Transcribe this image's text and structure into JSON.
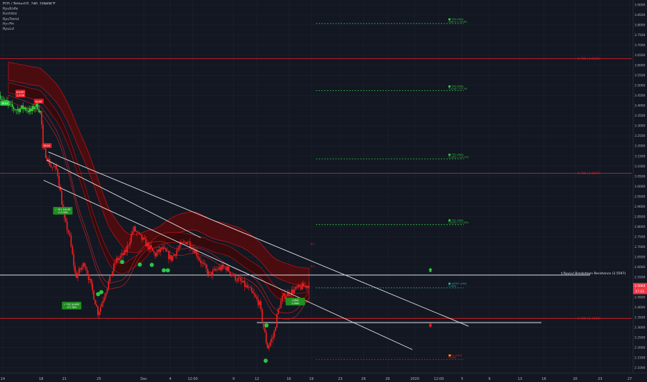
{
  "header": {
    "title": "EOS / TetherUS, 240, BINANCE",
    "indicators": [
      "RyuKnife",
      "Kushikoi",
      "RyuTrend",
      "RyuFib",
      "RyuLvl"
    ]
  },
  "chart_data": {
    "type": "candlestick",
    "x_ticks": [
      "14",
      "18",
      "21",
      "25",
      "Dec",
      "4",
      "12:00",
      "9",
      "12",
      "16",
      "19",
      "23",
      "26",
      "29",
      "2020",
      "12:00",
      "5",
      "9",
      "13",
      "16",
      "20",
      "23",
      "27",
      "12:00"
    ],
    "y_ticks": [
      "3.9000",
      "3.8500",
      "3.8000",
      "3.7500",
      "3.7000",
      "3.6500",
      "3.6000",
      "3.5500",
      "3.5000",
      "3.4500",
      "3.4000",
      "3.3500",
      "3.3000",
      "3.2500",
      "3.2000",
      "3.1500",
      "3.1000",
      "3.0500",
      "3.0000",
      "2.9500",
      "2.9000",
      "2.8500",
      "2.8000",
      "2.7500",
      "2.7000",
      "2.6500",
      "2.6000",
      "2.5500",
      "2.5000",
      "2.4500",
      "2.4000",
      "2.3500",
      "2.3000",
      "2.2500",
      "2.2000",
      "2.1500",
      "2.1000"
    ],
    "ylim": [
      2.09,
      3.91
    ],
    "last_price": "2.5064",
    "countdown": "17:23",
    "close_path": [
      {
        "day": 0,
        "price": 3.45
      },
      {
        "day": 1,
        "price": 3.4
      },
      {
        "day": 2,
        "price": 3.38
      },
      {
        "day": 3,
        "price": 3.39
      },
      {
        "day": 3.8,
        "price": 3.37
      },
      {
        "day": 4.5,
        "price": 3.41
      },
      {
        "day": 5.1,
        "price": 3.36
      },
      {
        "day": 5.3,
        "price": 3.19
      },
      {
        "day": 6.3,
        "price": 3.1
      },
      {
        "day": 7.1,
        "price": 3.08
      },
      {
        "day": 8,
        "price": 2.83
      },
      {
        "day": 8.6,
        "price": 2.76
      },
      {
        "day": 9.4,
        "price": 2.55
      },
      {
        "day": 10.5,
        "price": 2.62
      },
      {
        "day": 11.5,
        "price": 2.48
      },
      {
        "day": 12.2,
        "price": 2.37
      },
      {
        "day": 13.4,
        "price": 2.51
      },
      {
        "day": 14.4,
        "price": 2.63
      },
      {
        "day": 15.6,
        "price": 2.67
      },
      {
        "day": 16.6,
        "price": 2.79
      },
      {
        "day": 17.4,
        "price": 2.75
      },
      {
        "day": 18.3,
        "price": 2.71
      },
      {
        "day": 19.3,
        "price": 2.66
      },
      {
        "day": 20.2,
        "price": 2.69
      },
      {
        "day": 21.3,
        "price": 2.64
      },
      {
        "day": 22.3,
        "price": 2.7
      },
      {
        "day": 23.3,
        "price": 2.73
      },
      {
        "day": 24.3,
        "price": 2.68
      },
      {
        "day": 25.1,
        "price": 2.62
      },
      {
        "day": 26.1,
        "price": 2.56
      },
      {
        "day": 27.1,
        "price": 2.59
      },
      {
        "day": 28.1,
        "price": 2.6
      },
      {
        "day": 29.2,
        "price": 2.55
      },
      {
        "day": 30.2,
        "price": 2.52
      },
      {
        "day": 31.2,
        "price": 2.48
      },
      {
        "day": 32.3,
        "price": 2.42
      },
      {
        "day": 33.3,
        "price": 2.2
      },
      {
        "day": 34.1,
        "price": 2.26
      },
      {
        "day": 34.6,
        "price": 2.38
      },
      {
        "day": 35.2,
        "price": 2.45
      },
      {
        "day": 36.4,
        "price": 2.48
      },
      {
        "day": 37.5,
        "price": 2.5
      },
      {
        "day": 38.5,
        "price": 2.51
      }
    ],
    "red_levels": [
      {
        "label": "0.786 (3.6325)",
        "price": 3.6325
      },
      {
        "label": "0.786 (3.0647)",
        "price": 3.0647
      },
      {
        "label": "0.786 (2.3449)",
        "price": 2.3449
      }
    ],
    "resistance": {
      "label": "‡ RyuLvl Breakdown Resistance (2.5597)",
      "price": 2.5597
    },
    "support_box_price": 2.325,
    "targets": [
      {
        "label": "TP4 LONG",
        "sub": "3.8071 | +50.6%",
        "price": 3.8071
      },
      {
        "label": "TP3 LONG",
        "sub": "3.4744 | +37.5%",
        "price": 3.4744
      },
      {
        "label": "TP2 LONG",
        "sub": "3.1355 | +24.17%",
        "price": 3.1355
      },
      {
        "label": "TP1 LONG",
        "sub": "2.8102 | +11.29%",
        "price": 2.8102
      },
      {
        "label": "ENTRY LONG",
        "sub": "2.4964",
        "price": 2.4964
      },
      {
        "label": "SL LONG",
        "sub": "2.1404",
        "price": 2.1404
      }
    ],
    "signals": [
      {
        "text": "SHORT",
        "sub": "3.3736",
        "day": 2.5,
        "price": 3.465
      },
      {
        "text": "BULL",
        "sub": "",
        "day": 0.6,
        "price": 3.41
      },
      {
        "text": "BEAR",
        "sub": "",
        "day": 4.8,
        "price": 3.42
      },
      {
        "text": "BEAR",
        "sub": "",
        "day": 5.8,
        "price": 3.2
      }
    ],
    "tp_badges": [
      {
        "text": "✓ TP1 SHORT",
        "sub": "+13.98%",
        "day": 7.8,
        "price": 2.88
      },
      {
        "text": "✓ TP2 SHORT",
        "sub": "+27.38%",
        "day": 8.9,
        "price": 2.41
      },
      {
        "text": "LONG",
        "sub": "2.4964",
        "day": 36.8,
        "price": 2.43
      }
    ],
    "green_dots": [
      {
        "day": 12.2,
        "price": 2.465
      },
      {
        "day": 12.6,
        "price": 2.475
      },
      {
        "day": 15.2,
        "price": 2.625
      },
      {
        "day": 17.4,
        "price": 2.612
      },
      {
        "day": 18.9,
        "price": 2.61
      },
      {
        "day": 20.4,
        "price": 2.583
      },
      {
        "day": 20.9,
        "price": 2.583
      },
      {
        "day": 33.2,
        "price": 2.31
      },
      {
        "day": 33.1,
        "price": 2.135
      }
    ]
  }
}
